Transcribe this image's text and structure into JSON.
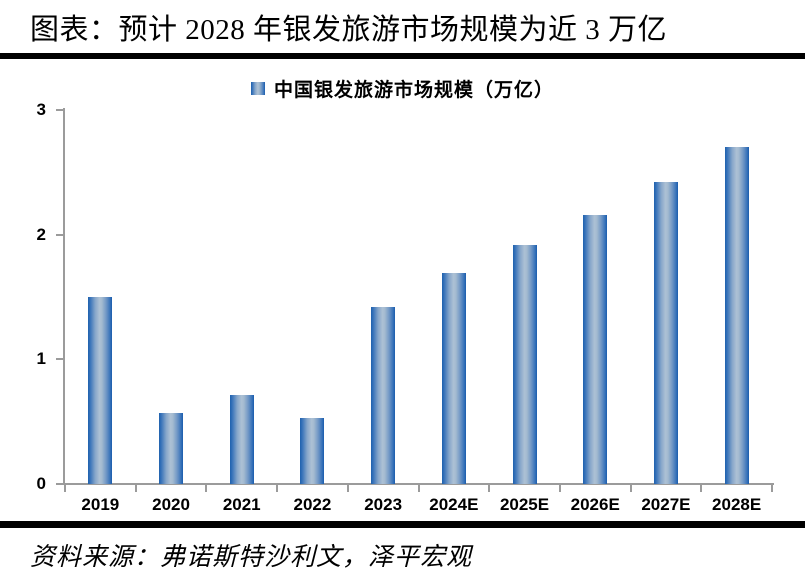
{
  "title": "图表：预计 2028 年银发旅游市场规模为近 3 万亿",
  "legend": {
    "label": "中国银发旅游市场规模（万亿）",
    "swatch_icon": "legend-swatch-icon"
  },
  "source": "资料来源：弗诺斯特沙利文，泽平宏观",
  "colors": {
    "bar_edge": "#1e61ae",
    "bar_mid": "#adc1d5",
    "axis": "#9b9b9b",
    "text": "#000000",
    "rule": "#000000"
  },
  "chart_data": {
    "type": "bar",
    "title": "中国银发旅游市场规模（万亿）",
    "categories": [
      "2019",
      "2020",
      "2021",
      "2022",
      "2023",
      "2024E",
      "2025E",
      "2026E",
      "2027E",
      "2028E"
    ],
    "values": [
      1.5,
      0.57,
      0.71,
      0.53,
      1.42,
      1.69,
      1.92,
      2.16,
      2.42,
      2.7
    ],
    "xlabel": "",
    "ylabel": "",
    "ylim": [
      0,
      3
    ],
    "yticks": [
      0,
      1,
      2,
      3
    ],
    "grid": false,
    "legend_position": "top-center",
    "bar_fill": "horizontal-gradient-blue"
  }
}
